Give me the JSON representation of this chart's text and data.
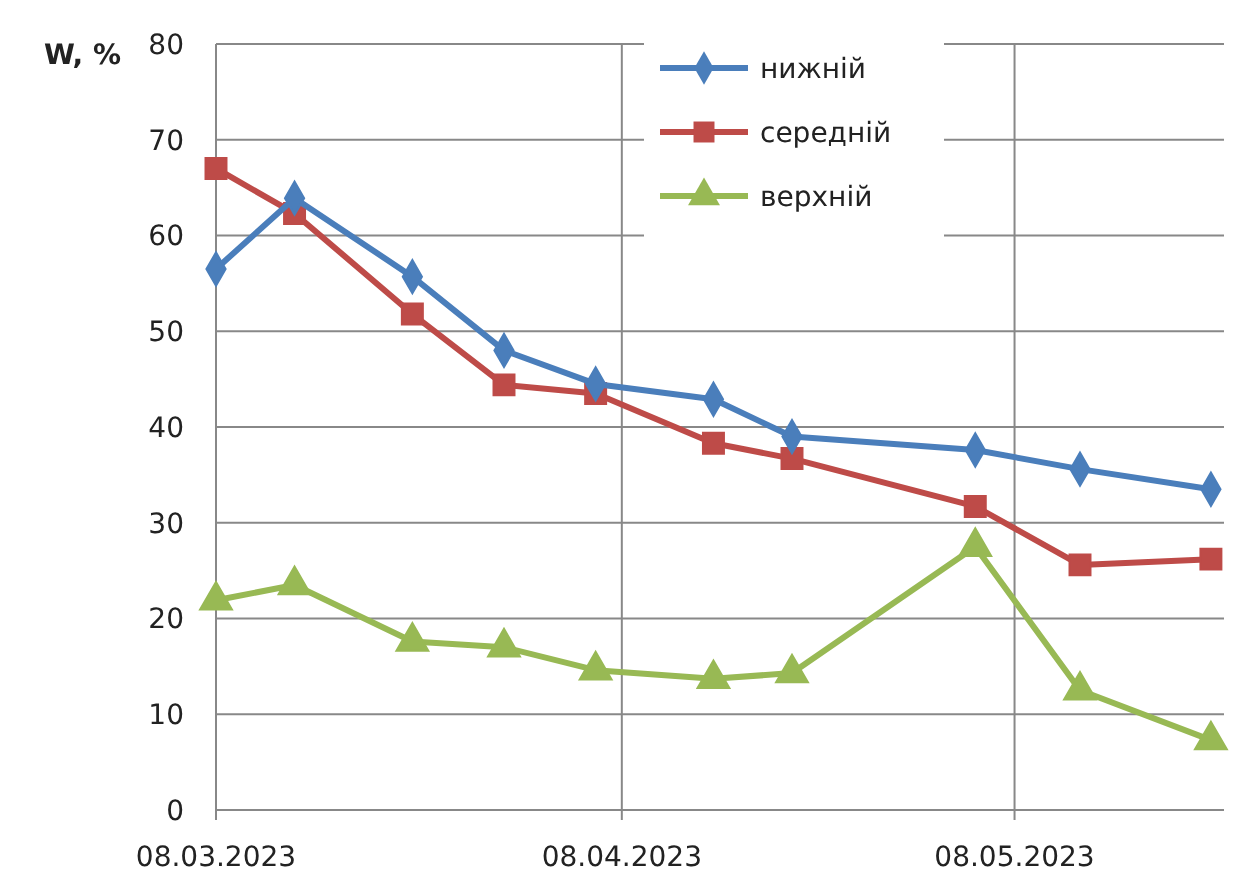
{
  "chart_data": {
    "type": "line",
    "ylabel": "W, %",
    "x": [
      "2023-03-08",
      "2023-03-14",
      "2023-03-23",
      "2023-03-30",
      "2023-04-06",
      "2023-04-15",
      "2023-04-21",
      "2023-05-05",
      "2023-05-13",
      "2023-05-23"
    ],
    "xlim": [
      "2023-03-08",
      "2023-05-24"
    ],
    "xticks": [
      {
        "value": "2023-03-08",
        "label": "08.03.2023"
      },
      {
        "value": "2023-04-08",
        "label": "08.04.2023"
      },
      {
        "value": "2023-05-08",
        "label": "08.05.2023"
      }
    ],
    "ylim": [
      0,
      80
    ],
    "yticks": [
      0,
      10,
      20,
      30,
      40,
      50,
      60,
      70,
      80
    ],
    "grid": true,
    "legend": "top",
    "line_style": "solid",
    "series": [
      {
        "name": "нижній",
        "color": "#4a7ebb",
        "marker": "diamond",
        "values": [
          56.5,
          63.9,
          55.7,
          48,
          44.5,
          42.9,
          39,
          37.6,
          35.6,
          33.5
        ]
      },
      {
        "name": "середній",
        "color": "#be4b48",
        "marker": "square",
        "values": [
          67,
          62.3,
          51.8,
          44.4,
          43.5,
          38.3,
          36.7,
          31.7,
          25.6,
          26.2
        ]
      },
      {
        "name": "верхній",
        "color": "#98b954",
        "marker": "triangle",
        "values": [
          21.9,
          23.5,
          17.6,
          17,
          14.6,
          13.7,
          14.3,
          27.5,
          12.5,
          7.3
        ]
      }
    ]
  }
}
